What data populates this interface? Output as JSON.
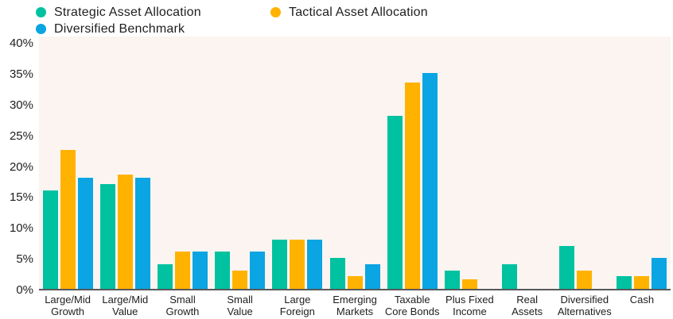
{
  "legend": {
    "items": [
      {
        "label": "Strategic Asset Allocation",
        "color": "#00C2A0",
        "icon": "circle-swatch-icon"
      },
      {
        "label": "Tactical Asset Allocation",
        "color": "#FFB300",
        "icon": "circle-swatch-icon"
      },
      {
        "label": "Diversified Benchmark",
        "color": "#0AA5E2",
        "icon": "circle-swatch-icon"
      }
    ]
  },
  "chart_data": {
    "type": "bar",
    "title": "",
    "categories": [
      "Large/Mid\nGrowth",
      "Large/Mid\nValue",
      "Small\nGrowth",
      "Small\nValue",
      "Large\nForeign",
      "Emerging\nMarkets",
      "Taxable\nCore Bonds",
      "Plus Fixed\nIncome",
      "Real\nAssets",
      "Diversified\nAlternatives",
      "Cash"
    ],
    "series": [
      {
        "name": "Strategic Asset Allocation",
        "color": "#00C2A0",
        "values": [
          16,
          17,
          4,
          6,
          8,
          5,
          28,
          3,
          4,
          7,
          2
        ]
      },
      {
        "name": "Tactical Asset Allocation",
        "color": "#FFB300",
        "values": [
          22.5,
          18.5,
          6,
          3,
          8,
          2,
          33.5,
          1.5,
          0,
          3,
          2
        ]
      },
      {
        "name": "Diversified Benchmark",
        "color": "#0AA5E2",
        "values": [
          18,
          18,
          6,
          6,
          8,
          4,
          35,
          0,
          0,
          0,
          5
        ]
      }
    ],
    "ylabel": "",
    "xlabel": "",
    "ylim": [
      0,
      40
    ],
    "yticks": [
      "40%",
      "35%",
      "30%",
      "25%",
      "20%",
      "15%",
      "10%",
      "5%",
      "0%"
    ],
    "grid": false,
    "legend_position": "top-left",
    "plot_background": "#FBF4F0",
    "axis_line_color": "#58595B",
    "text_color": "#1e1e1e"
  }
}
